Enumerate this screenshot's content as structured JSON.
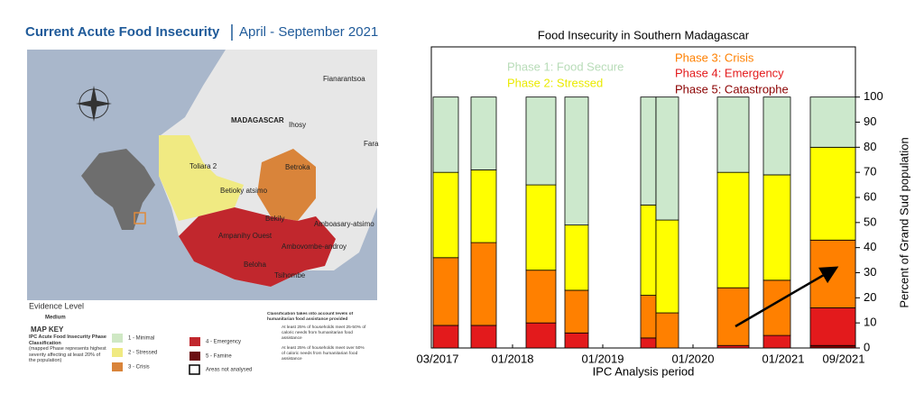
{
  "map": {
    "title": "Current Acute Food Insecurity",
    "period": "April - September 2021",
    "places": [
      "Fianarantsoa",
      "MADAGASCAR",
      "Ihosy",
      "Fara",
      "Toliara 2",
      "Betroka",
      "Betioky atsimo",
      "Bekily",
      "Amboasary-atsimo",
      "Ampanihy Ouest",
      "Ambovombe-androy",
      "Beloha",
      "Tsihombe"
    ],
    "evidence_title": "Evidence Level",
    "evidence_value": "Medium",
    "key_title": "MAP KEY",
    "key_subtitle": "IPC Acute Food Insecurity Phase Classification",
    "key_note": "(mapped Phase represents highest severity affecting at least 20% of the population)",
    "phases": [
      "1 - Minimal",
      "2 - Stressed",
      "3 - Crisis",
      "4 - Emergency",
      "5 - Famine",
      "Areas not analysed"
    ],
    "assistance_title": "Classification takes into account levels of humanitarian food assistance provided",
    "assistance_1": "At least 25% of households meet 25-50% of caloric needs from humanitarian food assistance",
    "assistance_2": "At least 25% of households meet over 50% of caloric needs from humanitarian food assistance"
  },
  "chart_data": {
    "type": "bar",
    "title": "Food Insecurity in Southern Madagascar",
    "x_label": "IPC Analysis period",
    "y_label": "Percent of Grand Sud population",
    "x": [
      2017.12,
      2017.54,
      2018.15,
      2018.58,
      2019.42,
      2019.59,
      2020.27,
      2020.78,
      2021.3
    ],
    "x_end": [
      2017.4,
      2017.82,
      2018.48,
      2018.84,
      2019.59,
      2019.84,
      2020.62,
      2021.08,
      2021.8
    ],
    "series": [
      {
        "name": "Phase 1: Food Secure",
        "color": "#cce8cc",
        "values": [
          30,
          29,
          35,
          51,
          43,
          49,
          30,
          31,
          20
        ]
      },
      {
        "name": "Phase 2: Stressed",
        "color": "#ffff00",
        "values": [
          34,
          29,
          34,
          26,
          36,
          37,
          46,
          42,
          37
        ]
      },
      {
        "name": "Phase 3: Crisis",
        "color": "#ff8000",
        "values": [
          27,
          33,
          21,
          17,
          17,
          14,
          23,
          22,
          27
        ]
      },
      {
        "name": "Phase 4: Emergency",
        "color": "#e31a1c",
        "values": [
          9,
          9,
          10,
          6,
          4,
          0,
          1,
          5,
          15
        ]
      },
      {
        "name": "Phase 5: Catastrophe",
        "color": "#8b0000",
        "values": [
          0,
          0,
          0,
          0,
          0,
          0,
          0,
          0,
          1
        ]
      }
    ],
    "legend_text_colors": [
      "#b8dcb8",
      "#eaea00",
      "#ff8000",
      "#e31a1c",
      "#8b0000"
    ],
    "xlim": [
      2017.1,
      2021.8
    ],
    "xticks": [
      {
        "value": 2017.17,
        "label": "03/2017"
      },
      {
        "value": 2018,
        "label": "01/2018"
      },
      {
        "value": 2019,
        "label": "01/2019"
      },
      {
        "value": 2020,
        "label": "01/2020"
      },
      {
        "value": 2021,
        "label": "01/2021"
      },
      {
        "value": 2021.67,
        "label": "09/2021"
      }
    ],
    "ylim": [
      0,
      120
    ],
    "yticks": [
      0,
      10,
      20,
      30,
      40,
      50,
      60,
      70,
      80,
      90,
      100
    ]
  }
}
